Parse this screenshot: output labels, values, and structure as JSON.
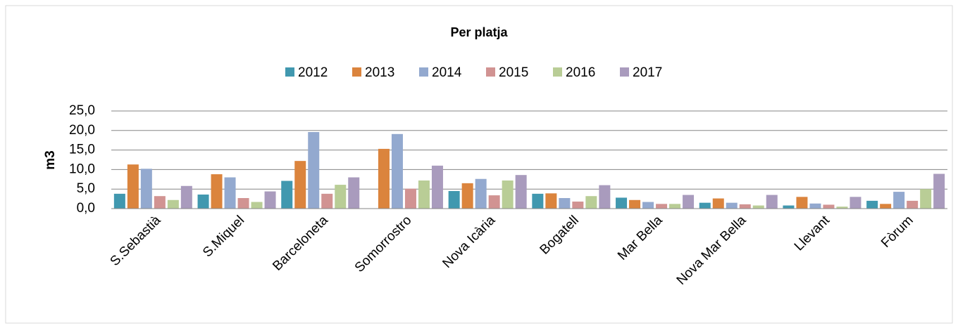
{
  "chart_data": {
    "type": "bar",
    "title": "Per platja",
    "y_label": "m3",
    "categories": [
      "S.Sebastià",
      "S.Miquel",
      "Barceloneta",
      "Somorrostro",
      "Nova Icària",
      "Bogatell",
      "Mar Bella",
      "Nova Mar Bella",
      "Llevant",
      "Fòrum"
    ],
    "series": [
      {
        "name": "2012",
        "color": "#4198af",
        "values": [
          3.8,
          3.6,
          7.1,
          0,
          4.5,
          3.8,
          2.8,
          1.5,
          0.8,
          2.0
        ]
      },
      {
        "name": "2013",
        "color": "#db843d",
        "values": [
          11.3,
          8.8,
          12.2,
          15.3,
          6.5,
          3.9,
          2.2,
          2.6,
          3.0,
          1.2
        ]
      },
      {
        "name": "2014",
        "color": "#93a9cf",
        "values": [
          10.2,
          8.0,
          19.6,
          19.1,
          7.6,
          2.7,
          1.7,
          1.5,
          1.3,
          4.3
        ]
      },
      {
        "name": "2015",
        "color": "#d19392",
        "values": [
          3.2,
          2.7,
          3.8,
          5.1,
          3.4,
          1.8,
          1.2,
          1.1,
          1.0,
          2.0
        ]
      },
      {
        "name": "2016",
        "color": "#b9cd96",
        "values": [
          2.2,
          1.7,
          6.1,
          7.2,
          7.2,
          3.2,
          1.2,
          0.8,
          0.5,
          5.0
        ]
      },
      {
        "name": "2017",
        "color": "#a99bbd",
        "values": [
          5.8,
          4.4,
          8.0,
          11.0,
          8.6,
          6.0,
          3.5,
          3.5,
          3.0,
          8.9
        ]
      }
    ],
    "ylim": [
      0,
      25
    ],
    "yticks": [
      {
        "value": 0,
        "label": "0,0"
      },
      {
        "value": 5,
        "label": "5,0"
      },
      {
        "value": 10,
        "label": "10,0"
      },
      {
        "value": 15,
        "label": "15,0"
      },
      {
        "value": 20,
        "label": "20,0"
      },
      {
        "value": 25,
        "label": "25,0"
      }
    ],
    "grid": true,
    "legend": "top"
  }
}
